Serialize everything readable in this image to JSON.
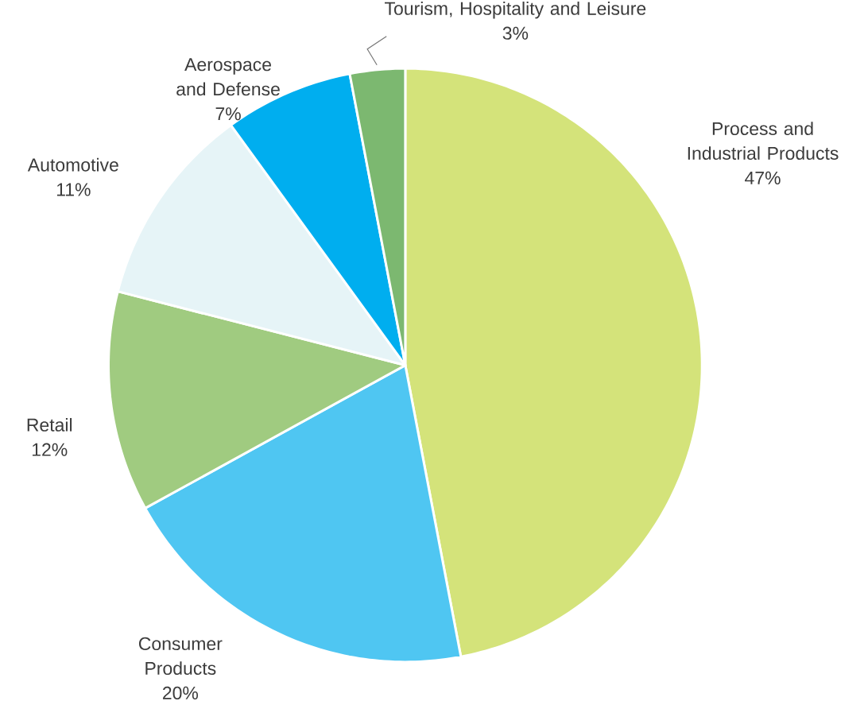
{
  "chart_data": {
    "type": "pie",
    "categories": [
      "Process and Industrial Products",
      "Consumer Products",
      "Retail",
      "Automotive",
      "Aerospace and Defense",
      "Tourism, Hospitality and Leisure"
    ],
    "values": [
      47,
      20,
      12,
      11,
      7,
      3
    ],
    "value_labels": [
      "47%",
      "20%",
      "12%",
      "11%",
      "7%",
      "3%"
    ],
    "colors": [
      "#d4e37a",
      "#4fc6f2",
      "#a0cb80",
      "#e6f4f7",
      "#00aeef",
      "#7cb870"
    ]
  }
}
